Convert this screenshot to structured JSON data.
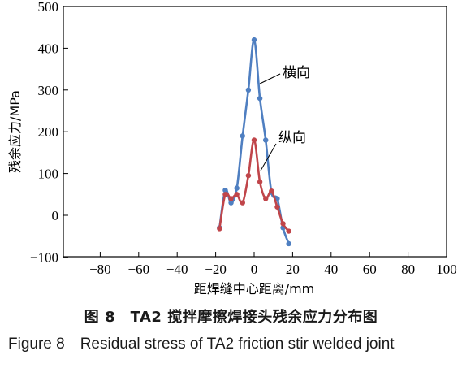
{
  "chart_data": {
    "type": "line",
    "xlabel": "距焊缝中心距离/mm",
    "ylabel": "残余应力/MPa",
    "xlim": [
      -100,
      100
    ],
    "ylim": [
      -100,
      500
    ],
    "xticks": [
      -80,
      -60,
      -40,
      -20,
      0,
      20,
      40,
      60,
      80,
      100
    ],
    "yticks": [
      -100,
      0,
      100,
      200,
      300,
      400,
      500
    ],
    "grid": false,
    "series": [
      {
        "name": "横向",
        "color": "#4f7fc1",
        "x": [
          -18,
          -15,
          -12,
          -9,
          -6,
          -3,
          0,
          3,
          6,
          9,
          12,
          15,
          18
        ],
        "y": [
          -30,
          60,
          30,
          65,
          190,
          300,
          420,
          280,
          180,
          55,
          40,
          -30,
          -68
        ]
      },
      {
        "name": "纵向",
        "color": "#c0454a",
        "x": [
          -18,
          -15,
          -12,
          -9,
          -6,
          -3,
          0,
          3,
          6,
          9,
          12,
          15,
          18
        ],
        "y": [
          -32,
          50,
          40,
          50,
          30,
          95,
          180,
          80,
          40,
          58,
          20,
          -20,
          -38
        ]
      }
    ]
  },
  "caption": {
    "cn": "图 8　TA2 搅拌摩擦焊接头残余应力分布图",
    "en": "Figure 8　Residual stress of TA2 friction stir welded joint"
  }
}
